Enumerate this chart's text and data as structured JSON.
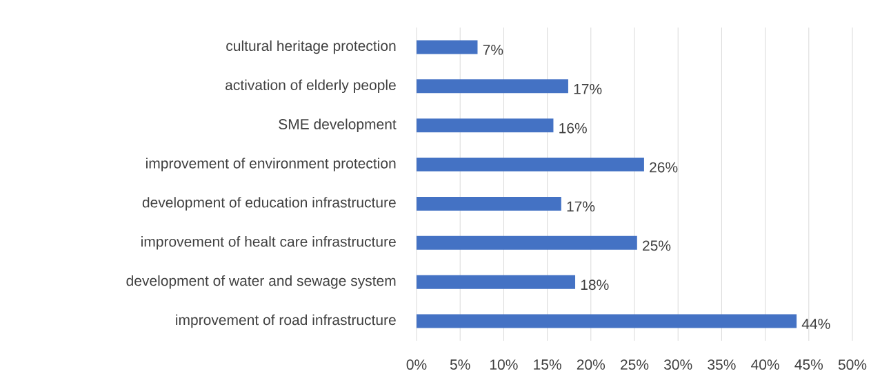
{
  "chart_data": {
    "type": "bar",
    "orientation": "horizontal",
    "categories": [
      "cultural heritage protection",
      "activation of elderly people",
      "SME development",
      "improvement of environment protection",
      "development of education infrastructure",
      "improvement of healt care infrastructure",
      "development of water and sewage system",
      "improvement of road infrastructure"
    ],
    "values": [
      7.0,
      17.4,
      15.7,
      26.1,
      16.6,
      25.3,
      18.2,
      43.6
    ],
    "value_labels": [
      "7%",
      "17%",
      "16%",
      "26%",
      "17%",
      "25%",
      "18%",
      "44%"
    ],
    "color": "#4472c4",
    "xlim": [
      0,
      50
    ],
    "xticks": [
      {
        "value": 0,
        "label": "0%"
      },
      {
        "value": 5,
        "label": "5%"
      },
      {
        "value": 10,
        "label": "10%"
      },
      {
        "value": 15,
        "label": "15%"
      },
      {
        "value": 20,
        "label": "20%"
      },
      {
        "value": 25,
        "label": "25%"
      },
      {
        "value": 30,
        "label": "30%"
      },
      {
        "value": 35,
        "label": "35%"
      },
      {
        "value": 40,
        "label": "40%"
      },
      {
        "value": 45,
        "label": "45%"
      },
      {
        "value": 50,
        "label": "50%"
      }
    ],
    "grid": "x"
  }
}
